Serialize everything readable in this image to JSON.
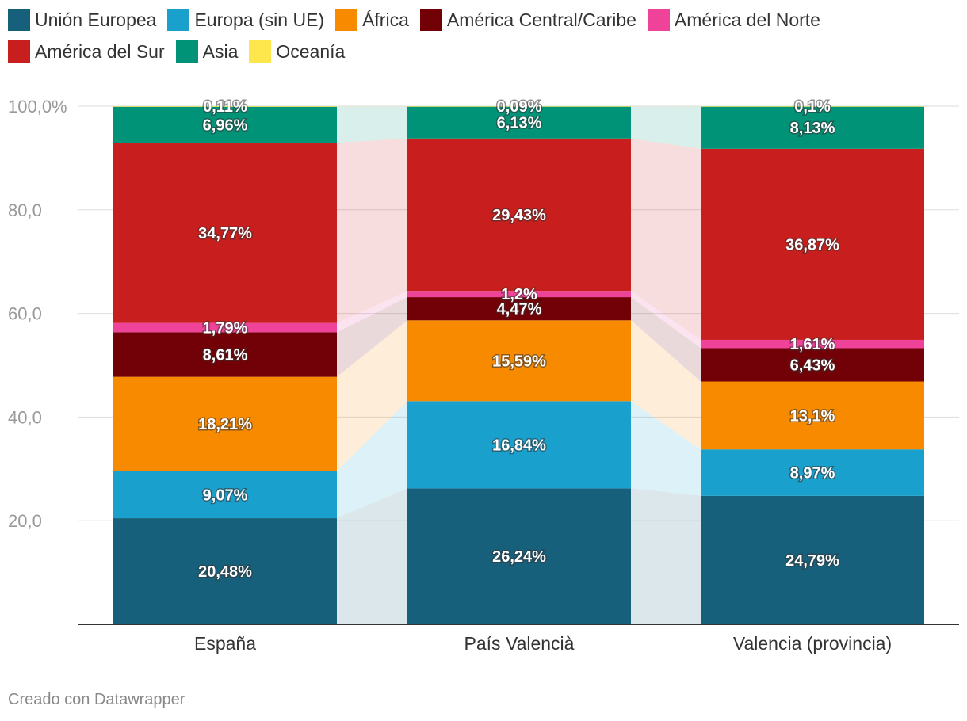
{
  "chart_data": {
    "type": "bar",
    "stacked": true,
    "categories": [
      "España",
      "País Valencià",
      "Valencia (provincia)"
    ],
    "series": [
      {
        "name": "Unión Europea",
        "color": "#17607b",
        "values": [
          20.48,
          26.24,
          24.79
        ],
        "labels": [
          "20,48%",
          "26,24%",
          "24,79%"
        ]
      },
      {
        "name": "Europa (sin UE)",
        "color": "#1aa0cd",
        "values": [
          9.07,
          16.84,
          8.97
        ],
        "labels": [
          "9,07%",
          "16,84%",
          "8,97%"
        ]
      },
      {
        "name": "África",
        "color": "#f88a00",
        "values": [
          18.21,
          15.59,
          13.1
        ],
        "labels": [
          "18,21%",
          "15,59%",
          "13,1%"
        ]
      },
      {
        "name": "América Central/Caribe",
        "color": "#720007",
        "values": [
          8.61,
          4.47,
          6.43
        ],
        "labels": [
          "8,61%",
          "4,47%",
          "6,43%"
        ]
      },
      {
        "name": "América del Norte",
        "color": "#ee4399",
        "values": [
          1.79,
          1.2,
          1.61
        ],
        "labels": [
          "1,79%",
          "1,2%",
          "1,61%"
        ]
      },
      {
        "name": "América del Sur",
        "color": "#c81e1e",
        "values": [
          34.77,
          29.43,
          36.87
        ],
        "labels": [
          "34,77%",
          "29,43%",
          "36,87%"
        ]
      },
      {
        "name": "Asia",
        "color": "#009378",
        "values": [
          6.96,
          6.13,
          8.13
        ],
        "labels": [
          "6,96%",
          "6,13%",
          "8,13%"
        ]
      },
      {
        "name": "Oceanía",
        "color": "#fde74c",
        "values": [
          0.11,
          0.09,
          0.1
        ],
        "labels": [
          "0,11%",
          "0,09%",
          "0,1%"
        ]
      }
    ],
    "yticks": [
      20,
      40,
      60,
      80,
      100
    ],
    "ytick_labels": [
      "20,0",
      "40,0",
      "60,0",
      "80,0",
      "100,0%"
    ],
    "ylim": [
      0,
      100
    ],
    "grid": true,
    "legend": "top"
  },
  "footer": "Creado con Datawrapper"
}
